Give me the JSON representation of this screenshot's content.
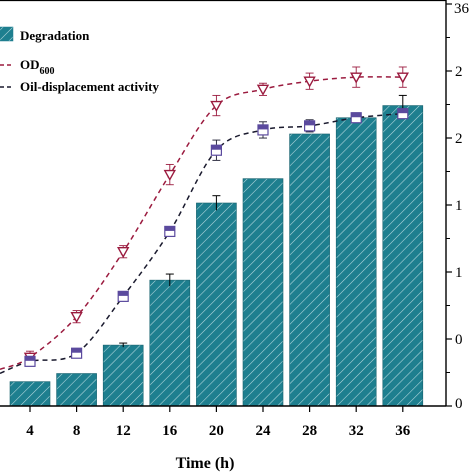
{
  "chart_data": {
    "type": "bar",
    "xlabel": "Time (h)",
    "categories": [
      "4",
      "8",
      "12",
      "16",
      "20",
      "24",
      "28",
      "32",
      "36"
    ],
    "x_ticks": [
      "4",
      "8",
      "12",
      "16",
      "20",
      "24",
      "28",
      "32",
      "36"
    ],
    "right_axis_ticks": [
      "0",
      "0",
      "1",
      "1",
      "2",
      "2",
      "3"
    ],
    "right_axis_top_label": "36",
    "series": [
      {
        "name": "Degradation",
        "kind": "bar",
        "color": "#1e7f8f",
        "values": [
          6,
          8,
          15,
          31,
          50,
          56,
          67,
          71,
          74
        ],
        "error": [
          0,
          0,
          0.5,
          1.5,
          1.8,
          0,
          0,
          0,
          2.5
        ]
      },
      {
        "name": "OD",
        "name_subscript": "600",
        "kind": "line",
        "color": "#9b1b3f",
        "marker": "triangle-down",
        "values": [
          12,
          22,
          38,
          57,
          74,
          78,
          80,
          81,
          81
        ],
        "error": [
          1.5,
          1.5,
          1.5,
          2.5,
          2.5,
          1.5,
          2,
          2.5,
          2.5
        ]
      },
      {
        "name": "Oil-displacement activity",
        "kind": "line",
        "color": "#1a1a2e",
        "marker": "square",
        "values": [
          11,
          13,
          27,
          43,
          63,
          68,
          69,
          71,
          72
        ],
        "error": [
          0.8,
          0.8,
          0.8,
          1,
          2.5,
          2,
          1.5,
          1.2,
          1.2
        ]
      }
    ],
    "ylim": [
      0,
      100
    ],
    "grid": false,
    "legend_position": "top-left"
  }
}
